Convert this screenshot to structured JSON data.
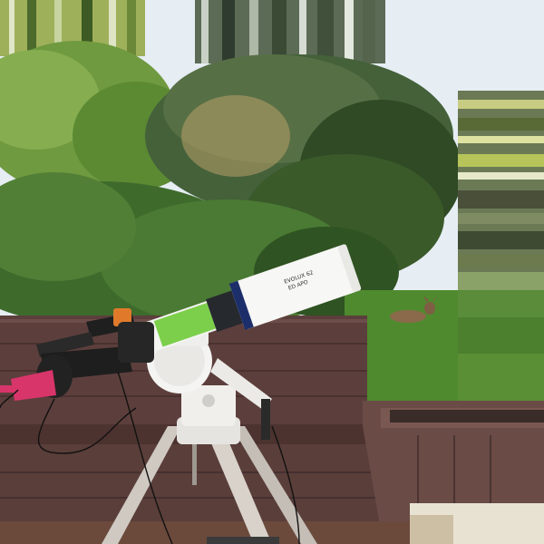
{
  "scene": {
    "description_free": true,
    "tube_label": {
      "line1": "EVOLUX 62",
      "line2": "ED APO"
    },
    "colors": {
      "sky": "#e7edf2",
      "tree_light": "#6f9a3f",
      "tree_dark": "#2f4a25",
      "hedge": "#3e6b2c",
      "lawn": "#4f8a2f",
      "deck_wall": "#5c3f3c",
      "deck_floor": "#6b4a3c",
      "telescope_body": "#f4f4f2",
      "telescope_green_band": "#7ccf4a",
      "camera_pink": "#d8356b",
      "focuser_orange": "#e07a2a",
      "tripod_leg": "#cfc9c2"
    }
  }
}
